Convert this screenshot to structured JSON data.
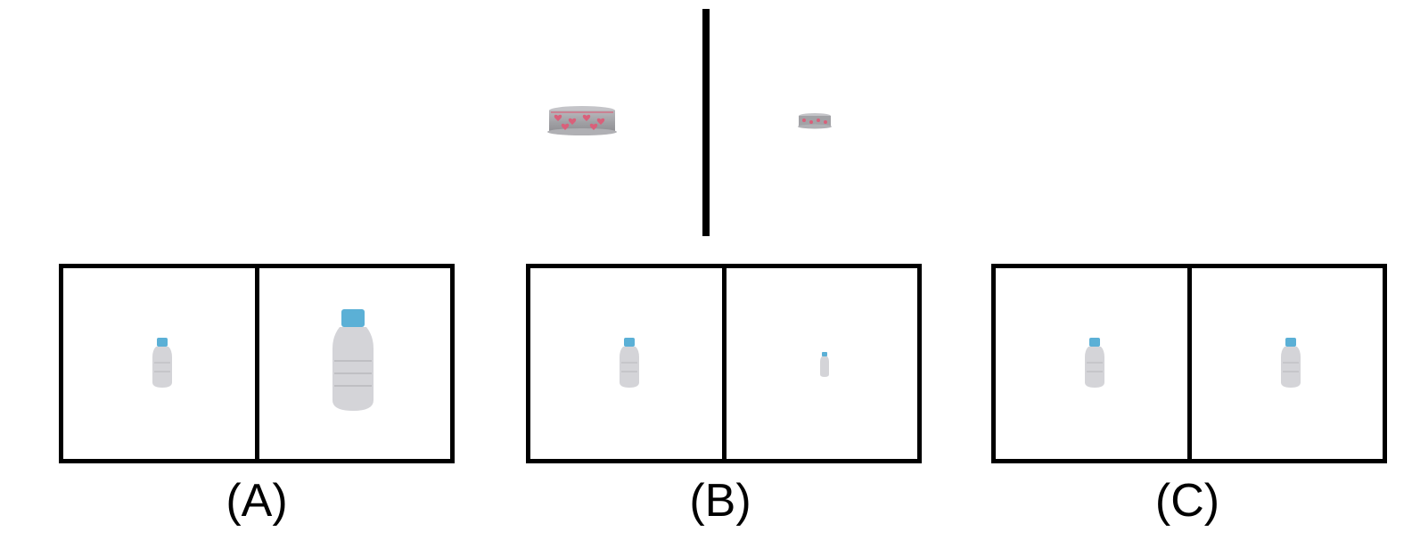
{
  "reference": {
    "left_object": "cake",
    "right_object": "cake"
  },
  "options": [
    {
      "label": "(A)",
      "left_object": "bottle",
      "right_object": "bottle"
    },
    {
      "label": "(B)",
      "left_object": "bottle",
      "right_object": "bottle"
    },
    {
      "label": "(C)",
      "left_object": "bottle",
      "right_object": "bottle"
    }
  ],
  "colors": {
    "frame": "#000000",
    "bottle_cap": "#5bb0d6",
    "bottle_body": "#d4d4d8",
    "cake_body": "#9a9a9e",
    "cake_hearts": "#d9607a"
  }
}
